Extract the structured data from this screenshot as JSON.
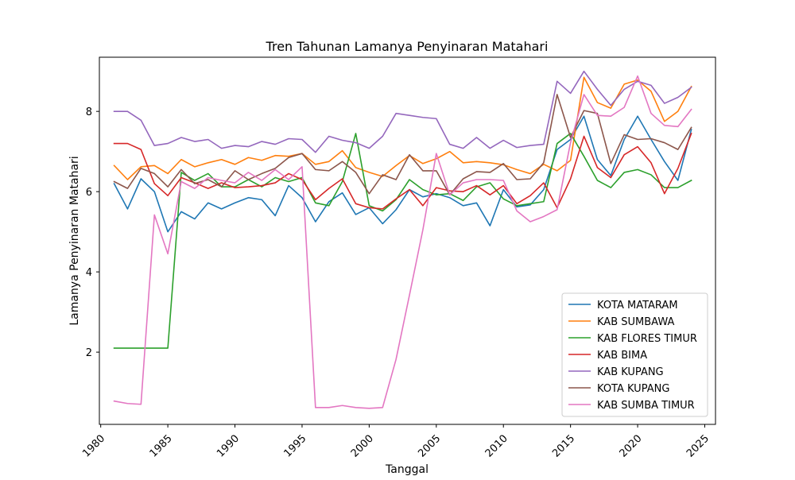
{
  "chart_data": {
    "type": "line",
    "title": "Tren Tahunan Lamanya Penyinaran Matahari",
    "xlabel": "Tanggal",
    "ylabel": "Lamanya Penyinaran Matahari",
    "xlim": [
      1979.9,
      2025.8
    ],
    "ylim": [
      0.2,
      9.35
    ],
    "xticks": [
      1980,
      1985,
      1990,
      1995,
      2000,
      2005,
      2010,
      2015,
      2020,
      2025
    ],
    "yticks": [
      2,
      4,
      6,
      8
    ],
    "grid": false,
    "legend_position": "lower-right",
    "x": [
      1981,
      1982,
      1983,
      1984,
      1985,
      1986,
      1987,
      1988,
      1989,
      1990,
      1991,
      1992,
      1993,
      1994,
      1995,
      1996,
      1997,
      1998,
      1999,
      2000,
      2001,
      2002,
      2003,
      2004,
      2005,
      2006,
      2007,
      2008,
      2009,
      2010,
      2011,
      2012,
      2013,
      2014,
      2015,
      2016,
      2017,
      2018,
      2019,
      2020,
      2021,
      2022,
      2023,
      2024
    ],
    "series": [
      {
        "name": "KOTA MATARAM",
        "color": "#1f77b4",
        "values": [
          6.2,
          5.57,
          6.32,
          6.0,
          5.0,
          5.5,
          5.32,
          5.72,
          5.57,
          5.72,
          5.85,
          5.8,
          5.4,
          6.15,
          5.85,
          5.25,
          5.75,
          5.97,
          5.43,
          5.6,
          5.2,
          5.55,
          6.05,
          5.87,
          5.95,
          5.85,
          5.65,
          5.72,
          5.15,
          6.05,
          5.62,
          5.67,
          6.05,
          7.05,
          7.3,
          7.88,
          6.8,
          6.4,
          7.3,
          7.88,
          7.3,
          6.75,
          6.28,
          7.55
        ]
      },
      {
        "name": "KAB SUMBAWA",
        "color": "#ff7f0e",
        "values": [
          6.65,
          6.3,
          6.62,
          6.65,
          6.45,
          6.8,
          6.62,
          6.72,
          6.8,
          6.68,
          6.85,
          6.78,
          6.9,
          6.88,
          6.95,
          6.68,
          6.75,
          7.02,
          6.6,
          6.48,
          6.38,
          6.65,
          6.9,
          6.7,
          6.82,
          7.0,
          6.72,
          6.75,
          6.72,
          6.67,
          6.55,
          6.45,
          6.68,
          6.52,
          6.78,
          8.85,
          8.22,
          8.08,
          8.68,
          8.78,
          8.5,
          7.75,
          8.0,
          8.62
        ]
      },
      {
        "name": "KAB FLORES TIMUR",
        "color": "#2ca02c",
        "values": [
          2.1,
          2.1,
          2.1,
          2.1,
          2.1,
          6.48,
          6.28,
          6.45,
          6.12,
          6.12,
          6.3,
          6.12,
          6.35,
          6.25,
          6.35,
          5.72,
          5.65,
          6.25,
          7.45,
          5.65,
          5.52,
          5.8,
          6.3,
          6.05,
          5.92,
          5.95,
          5.78,
          6.12,
          6.22,
          5.82,
          5.65,
          5.7,
          5.75,
          7.2,
          7.45,
          6.88,
          6.28,
          6.1,
          6.48,
          6.55,
          6.42,
          6.1,
          6.1,
          6.28
        ]
      },
      {
        "name": "KAB BIMA",
        "color": "#d62728",
        "values": [
          7.2,
          7.2,
          7.05,
          6.2,
          5.9,
          6.35,
          6.22,
          6.08,
          6.22,
          6.1,
          6.12,
          6.15,
          6.22,
          6.45,
          6.3,
          5.8,
          6.08,
          6.32,
          5.7,
          5.6,
          5.57,
          5.82,
          6.05,
          5.65,
          6.1,
          6.02,
          6.0,
          6.15,
          5.92,
          6.15,
          5.7,
          5.9,
          6.22,
          5.6,
          6.32,
          7.38,
          6.6,
          6.35,
          6.92,
          7.12,
          6.72,
          5.95,
          6.58,
          7.45
        ]
      },
      {
        "name": "KAB KUPANG",
        "color": "#9467bd",
        "values": [
          8.0,
          8.0,
          7.78,
          7.15,
          7.2,
          7.35,
          7.25,
          7.3,
          7.08,
          7.15,
          7.12,
          7.25,
          7.18,
          7.32,
          7.3,
          6.98,
          7.38,
          7.28,
          7.22,
          7.08,
          7.38,
          7.95,
          7.9,
          7.85,
          7.82,
          7.18,
          7.08,
          7.35,
          7.08,
          7.28,
          7.1,
          7.15,
          7.18,
          8.75,
          8.45,
          9.0,
          8.55,
          8.15,
          8.55,
          8.75,
          8.65,
          8.2,
          8.35,
          8.6
        ]
      },
      {
        "name": "KOTA KUPANG",
        "color": "#8c564b",
        "values": [
          6.25,
          6.08,
          6.58,
          6.45,
          6.12,
          6.55,
          6.2,
          6.3,
          6.12,
          6.52,
          6.3,
          6.45,
          6.58,
          6.85,
          6.95,
          6.55,
          6.52,
          6.75,
          6.48,
          5.95,
          6.42,
          6.3,
          6.92,
          6.52,
          6.52,
          5.92,
          6.32,
          6.5,
          6.48,
          6.7,
          6.3,
          6.32,
          6.72,
          8.42,
          7.35,
          8.02,
          7.95,
          6.7,
          7.42,
          7.3,
          7.32,
          7.22,
          7.05,
          7.6
        ]
      },
      {
        "name": "KAB SUMBA TIMUR",
        "color": "#e377c2",
        "values": [
          0.78,
          0.72,
          0.7,
          5.42,
          4.45,
          6.25,
          6.08,
          6.35,
          6.28,
          6.22,
          6.48,
          6.28,
          6.55,
          6.3,
          6.62,
          0.62,
          0.62,
          0.67,
          0.62,
          0.6,
          0.62,
          1.82,
          3.42,
          5.05,
          6.95,
          5.92,
          6.22,
          6.3,
          6.3,
          6.28,
          5.52,
          5.25,
          5.38,
          5.55,
          7.22,
          8.42,
          7.9,
          7.88,
          8.1,
          8.88,
          7.95,
          7.65,
          7.62,
          8.05
        ]
      }
    ]
  }
}
